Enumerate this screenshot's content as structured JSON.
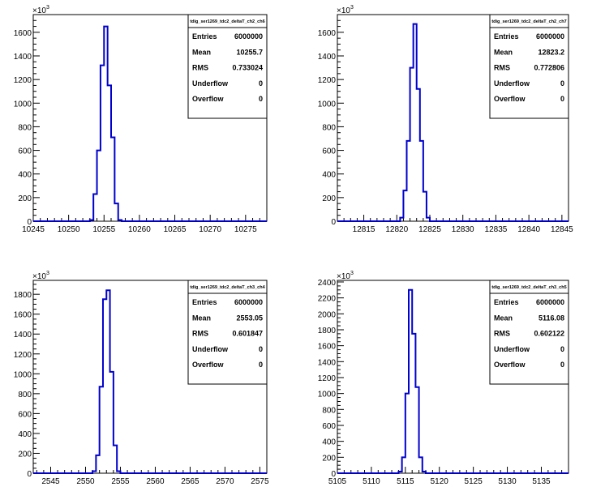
{
  "chart_data": [
    {
      "type": "histogram",
      "stats_title": "tdig_ser1269_tdc2_deltaT_ch2_ch6",
      "stats": [
        {
          "label": "Entries",
          "value": "6000000"
        },
        {
          "label": "Mean",
          "value": "10255.7"
        },
        {
          "label": "RMS",
          "value": "0.733024"
        },
        {
          "label": "Underflow",
          "value": "0"
        },
        {
          "label": "Overflow",
          "value": "0"
        }
      ],
      "y_exponent_label": "×10",
      "y_exponent_power": "3",
      "xlim": [
        10245,
        10278
      ],
      "ylim": [
        0,
        1750
      ],
      "x_ticks": [
        10245,
        10250,
        10255,
        10260,
        10265,
        10270,
        10275
      ],
      "x_tick_labels": [
        "10245",
        "10250",
        "10255",
        "10260",
        "10265",
        "10270",
        "10275"
      ],
      "y_ticks": [
        0,
        200,
        400,
        600,
        800,
        1000,
        1200,
        1400,
        1600
      ],
      "y_tick_labels": [
        "0",
        "200",
        "400",
        "600",
        "800",
        "1000",
        "1200",
        "1400",
        "1600"
      ],
      "bins": [
        {
          "x0": 10253.0,
          "x1": 10253.5,
          "y": 10
        },
        {
          "x0": 10253.5,
          "x1": 10254.0,
          "y": 230
        },
        {
          "x0": 10254.0,
          "x1": 10254.5,
          "y": 600
        },
        {
          "x0": 10254.5,
          "x1": 10255.0,
          "y": 1320
        },
        {
          "x0": 10255.0,
          "x1": 10255.5,
          "y": 1650
        },
        {
          "x0": 10255.5,
          "x1": 10256.0,
          "y": 1150
        },
        {
          "x0": 10256.0,
          "x1": 10256.5,
          "y": 710
        },
        {
          "x0": 10256.5,
          "x1": 10257.0,
          "y": 150
        },
        {
          "x0": 10257.0,
          "x1": 10257.5,
          "y": 10
        }
      ]
    },
    {
      "type": "histogram",
      "stats_title": "tdig_ser1269_tdc2_deltaT_ch2_ch7",
      "stats": [
        {
          "label": "Entries",
          "value": "6000000"
        },
        {
          "label": "Mean",
          "value": "12823.2"
        },
        {
          "label": "RMS",
          "value": "0.772806"
        },
        {
          "label": "Underflow",
          "value": "0"
        },
        {
          "label": "Overflow",
          "value": "0"
        }
      ],
      "y_exponent_label": "×10",
      "y_exponent_power": "3",
      "xlim": [
        12811,
        12846
      ],
      "ylim": [
        0,
        1750
      ],
      "x_ticks": [
        12815,
        12820,
        12825,
        12830,
        12835,
        12840,
        12845
      ],
      "x_tick_labels": [
        "12815",
        "12820",
        "12825",
        "12830",
        "12835",
        "12840",
        "12845"
      ],
      "y_ticks": [
        0,
        200,
        400,
        600,
        800,
        1000,
        1200,
        1400,
        1600
      ],
      "y_tick_labels": [
        "0",
        "200",
        "400",
        "600",
        "800",
        "1000",
        "1200",
        "1400",
        "1600"
      ],
      "bins": [
        {
          "x0": 12820.5,
          "x1": 12821.0,
          "y": 30
        },
        {
          "x0": 12821.0,
          "x1": 12821.5,
          "y": 260
        },
        {
          "x0": 12821.5,
          "x1": 12822.0,
          "y": 680
        },
        {
          "x0": 12822.0,
          "x1": 12822.5,
          "y": 1300
        },
        {
          "x0": 12822.5,
          "x1": 12823.0,
          "y": 1670
        },
        {
          "x0": 12823.0,
          "x1": 12823.5,
          "y": 1120
        },
        {
          "x0": 12823.5,
          "x1": 12824.0,
          "y": 680
        },
        {
          "x0": 12824.0,
          "x1": 12824.5,
          "y": 250
        },
        {
          "x0": 12824.5,
          "x1": 12825.0,
          "y": 30
        }
      ]
    },
    {
      "type": "histogram",
      "stats_title": "tdig_ser1269_tdc2_deltaT_ch3_ch4",
      "stats": [
        {
          "label": "Entries",
          "value": "6000000"
        },
        {
          "label": "Mean",
          "value": "2553.05"
        },
        {
          "label": "RMS",
          "value": "0.601847"
        },
        {
          "label": "Underflow",
          "value": "0"
        },
        {
          "label": "Overflow",
          "value": "0"
        }
      ],
      "y_exponent_label": "×10",
      "y_exponent_power": "3",
      "xlim": [
        2542.5,
        2576
      ],
      "ylim": [
        0,
        1940
      ],
      "x_ticks": [
        2545,
        2550,
        2555,
        2560,
        2565,
        2570,
        2575
      ],
      "x_tick_labels": [
        "2545",
        "2550",
        "2555",
        "2560",
        "2565",
        "2570",
        "2575"
      ],
      "y_ticks": [
        0,
        200,
        400,
        600,
        800,
        1000,
        1200,
        1400,
        1600,
        1800
      ],
      "y_tick_labels": [
        "0",
        "200",
        "400",
        "600",
        "800",
        "1000",
        "1200",
        "1400",
        "1600",
        "1800"
      ],
      "bins": [
        {
          "x0": 2551.0,
          "x1": 2551.5,
          "y": 20
        },
        {
          "x0": 2551.5,
          "x1": 2552.0,
          "y": 180
        },
        {
          "x0": 2552.0,
          "x1": 2552.5,
          "y": 870
        },
        {
          "x0": 2552.5,
          "x1": 2553.0,
          "y": 1750
        },
        {
          "x0": 2553.0,
          "x1": 2553.5,
          "y": 1840
        },
        {
          "x0": 2553.5,
          "x1": 2554.0,
          "y": 1020
        },
        {
          "x0": 2554.0,
          "x1": 2554.5,
          "y": 280
        },
        {
          "x0": 2554.5,
          "x1": 2555.0,
          "y": 20
        }
      ]
    },
    {
      "type": "histogram",
      "stats_title": "tdig_ser1269_tdc2_deltaT_ch3_ch5",
      "stats": [
        {
          "label": "Entries",
          "value": "6000000"
        },
        {
          "label": "Mean",
          "value": "5116.08"
        },
        {
          "label": "RMS",
          "value": "0.602122"
        },
        {
          "label": "Underflow",
          "value": "0"
        },
        {
          "label": "Overflow",
          "value": "0"
        }
      ],
      "y_exponent_label": "×10",
      "y_exponent_power": "3",
      "xlim": [
        5105,
        5139
      ],
      "ylim": [
        0,
        2420
      ],
      "x_ticks": [
        5105,
        5110,
        5115,
        5120,
        5125,
        5130,
        5135
      ],
      "x_tick_labels": [
        "5105",
        "5110",
        "5115",
        "5120",
        "5125",
        "5130",
        "5135"
      ],
      "y_ticks": [
        0,
        200,
        400,
        600,
        800,
        1000,
        1200,
        1400,
        1600,
        1800,
        2000,
        2200,
        2400
      ],
      "y_tick_labels": [
        "0",
        "200",
        "400",
        "600",
        "800",
        "1000",
        "1200",
        "1400",
        "1600",
        "1800",
        "2000",
        "2200",
        "2400"
      ],
      "bins": [
        {
          "x0": 5114.0,
          "x1": 5114.5,
          "y": 20
        },
        {
          "x0": 5114.5,
          "x1": 5115.0,
          "y": 200
        },
        {
          "x0": 5115.0,
          "x1": 5115.5,
          "y": 1000
        },
        {
          "x0": 5115.5,
          "x1": 5116.0,
          "y": 2300
        },
        {
          "x0": 5116.0,
          "x1": 5116.5,
          "y": 1750
        },
        {
          "x0": 5116.5,
          "x1": 5117.0,
          "y": 1080
        },
        {
          "x0": 5117.0,
          "x1": 5117.5,
          "y": 200
        },
        {
          "x0": 5117.5,
          "x1": 5118.0,
          "y": 20
        }
      ]
    }
  ],
  "colors": {
    "histogram_line": "#0000cc",
    "axis": "#000000",
    "background": "#ffffff"
  }
}
